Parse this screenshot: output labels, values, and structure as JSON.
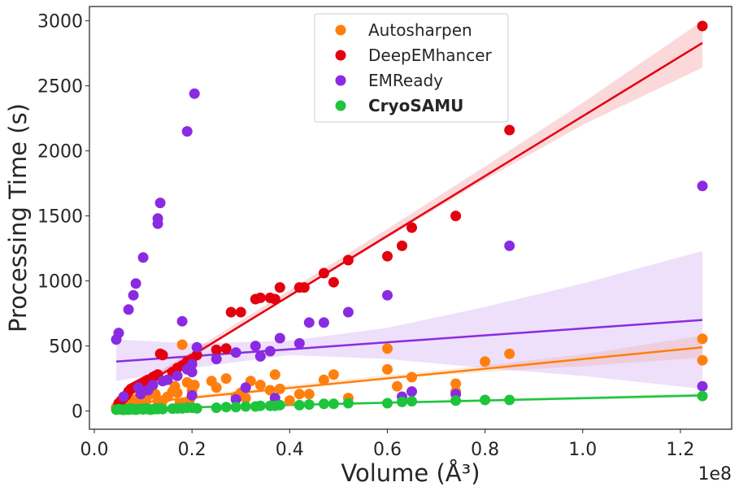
{
  "chart_data": {
    "type": "scatter",
    "title": "",
    "xlabel": "Volume (Å³)",
    "ylabel": "Processing Time (s)",
    "x_offset_label": "1e8",
    "x_scale": 100000000,
    "xlim": [
      -0.01,
      1.305
    ],
    "ylim": [
      -140,
      3110
    ],
    "xticks": [
      0.0,
      0.2,
      0.4,
      0.6,
      0.8,
      1.0,
      1.2
    ],
    "xtick_labels": [
      "0.0",
      "0.2",
      "0.4",
      "0.6",
      "0.8",
      "1.0",
      "1.2"
    ],
    "yticks": [
      0,
      500,
      1000,
      1500,
      2000,
      2500,
      3000
    ],
    "ytick_labels": [
      "0",
      "500",
      "1000",
      "1500",
      "2000",
      "2500",
      "3000"
    ],
    "grid": false,
    "legend_position": "top-center",
    "series": [
      {
        "name": "Autosharpen",
        "color": "#ff7f0e",
        "bold": false,
        "fit": {
          "x": [
            0.045,
            1.245
          ],
          "y": [
            45,
            490
          ]
        },
        "band": {
          "x": [
            0.045,
            0.2,
            0.4,
            0.6,
            0.8,
            1.0,
            1.245
          ],
          "lower": [
            25,
            95,
            175,
            245,
            300,
            345,
            410
          ],
          "upper": [
            70,
            120,
            200,
            275,
            350,
            435,
            580
          ]
        },
        "points": [
          [
            0.045,
            30
          ],
          [
            0.055,
            60
          ],
          [
            0.06,
            20
          ],
          [
            0.07,
            40
          ],
          [
            0.075,
            90
          ],
          [
            0.08,
            50
          ],
          [
            0.085,
            60
          ],
          [
            0.09,
            100
          ],
          [
            0.095,
            140
          ],
          [
            0.1,
            40
          ],
          [
            0.105,
            70
          ],
          [
            0.11,
            120
          ],
          [
            0.115,
            170
          ],
          [
            0.12,
            260
          ],
          [
            0.125,
            130
          ],
          [
            0.13,
            80
          ],
          [
            0.14,
            80
          ],
          [
            0.15,
            110
          ],
          [
            0.16,
            150
          ],
          [
            0.165,
            190
          ],
          [
            0.17,
            140
          ],
          [
            0.175,
            60
          ],
          [
            0.18,
            510
          ],
          [
            0.185,
            360
          ],
          [
            0.19,
            220
          ],
          [
            0.195,
            80
          ],
          [
            0.2,
            160
          ],
          [
            0.205,
            200
          ],
          [
            0.24,
            230
          ],
          [
            0.25,
            180
          ],
          [
            0.27,
            250
          ],
          [
            0.29,
            110
          ],
          [
            0.3,
            140
          ],
          [
            0.31,
            100
          ],
          [
            0.32,
            230
          ],
          [
            0.34,
            200
          ],
          [
            0.36,
            160
          ],
          [
            0.37,
            280
          ],
          [
            0.38,
            170
          ],
          [
            0.4,
            80
          ],
          [
            0.42,
            130
          ],
          [
            0.44,
            130
          ],
          [
            0.47,
            240
          ],
          [
            0.49,
            280
          ],
          [
            0.52,
            100
          ],
          [
            0.6,
            480
          ],
          [
            0.6,
            320
          ],
          [
            0.62,
            190
          ],
          [
            0.65,
            260
          ],
          [
            0.74,
            210
          ],
          [
            0.74,
            150
          ],
          [
            0.8,
            380
          ],
          [
            0.85,
            440
          ],
          [
            1.245,
            555
          ],
          [
            1.245,
            390
          ]
        ]
      },
      {
        "name": "DeepEMhancer",
        "color": "#e3000f",
        "bold": false,
        "fit": {
          "x": [
            0.045,
            1.245
          ],
          "y": [
            70,
            2830
          ]
        },
        "band": {
          "x": [
            0.045,
            0.2,
            0.4,
            0.6,
            0.8,
            1.0,
            1.245
          ],
          "lower": [
            40,
            410,
            880,
            1330,
            1780,
            2200,
            2640
          ],
          "upper": [
            100,
            460,
            930,
            1400,
            1880,
            2370,
            3000
          ]
        },
        "points": [
          [
            0.05,
            60
          ],
          [
            0.055,
            80
          ],
          [
            0.06,
            100
          ],
          [
            0.065,
            120
          ],
          [
            0.07,
            150
          ],
          [
            0.075,
            170
          ],
          [
            0.08,
            180
          ],
          [
            0.085,
            190
          ],
          [
            0.09,
            200
          ],
          [
            0.095,
            210
          ],
          [
            0.1,
            220
          ],
          [
            0.105,
            230
          ],
          [
            0.11,
            240
          ],
          [
            0.12,
            260
          ],
          [
            0.125,
            270
          ],
          [
            0.13,
            280
          ],
          [
            0.135,
            440
          ],
          [
            0.14,
            430
          ],
          [
            0.16,
            300
          ],
          [
            0.17,
            330
          ],
          [
            0.18,
            350
          ],
          [
            0.19,
            380
          ],
          [
            0.2,
            400
          ],
          [
            0.21,
            430
          ],
          [
            0.25,
            470
          ],
          [
            0.27,
            480
          ],
          [
            0.28,
            760
          ],
          [
            0.3,
            760
          ],
          [
            0.33,
            860
          ],
          [
            0.34,
            870
          ],
          [
            0.36,
            870
          ],
          [
            0.37,
            860
          ],
          [
            0.38,
            950
          ],
          [
            0.42,
            950
          ],
          [
            0.43,
            950
          ],
          [
            0.47,
            1060
          ],
          [
            0.49,
            990
          ],
          [
            0.52,
            1160
          ],
          [
            0.6,
            1190
          ],
          [
            0.63,
            1270
          ],
          [
            0.65,
            1410
          ],
          [
            0.74,
            1500
          ],
          [
            0.85,
            2160
          ],
          [
            1.245,
            2960
          ]
        ]
      },
      {
        "name": "EMReady",
        "color": "#8a2be2",
        "bold": false,
        "fit": {
          "x": [
            0.045,
            1.245
          ],
          "y": [
            380,
            700
          ]
        },
        "band": {
          "x": [
            0.045,
            0.2,
            0.4,
            0.6,
            0.8,
            1.0,
            1.245
          ],
          "lower": [
            230,
            330,
            430,
            400,
            330,
            270,
            170
          ],
          "upper": [
            550,
            520,
            540,
            640,
            800,
            980,
            1230
          ]
        },
        "points": [
          [
            0.045,
            550
          ],
          [
            0.05,
            600
          ],
          [
            0.06,
            110
          ],
          [
            0.07,
            780
          ],
          [
            0.08,
            890
          ],
          [
            0.085,
            980
          ],
          [
            0.1,
            1180
          ],
          [
            0.09,
            180
          ],
          [
            0.095,
            130
          ],
          [
            0.11,
            160
          ],
          [
            0.12,
            200
          ],
          [
            0.13,
            1480
          ],
          [
            0.13,
            1440
          ],
          [
            0.135,
            1600
          ],
          [
            0.14,
            230
          ],
          [
            0.15,
            240
          ],
          [
            0.17,
            270
          ],
          [
            0.18,
            690
          ],
          [
            0.19,
            2150
          ],
          [
            0.19,
            320
          ],
          [
            0.2,
            360
          ],
          [
            0.2,
            300
          ],
          [
            0.205,
            2440
          ],
          [
            0.21,
            490
          ],
          [
            0.2,
            120
          ],
          [
            0.25,
            400
          ],
          [
            0.29,
            90
          ],
          [
            0.29,
            450
          ],
          [
            0.31,
            180
          ],
          [
            0.33,
            500
          ],
          [
            0.34,
            420
          ],
          [
            0.36,
            460
          ],
          [
            0.37,
            100
          ],
          [
            0.38,
            560
          ],
          [
            0.42,
            520
          ],
          [
            0.44,
            680
          ],
          [
            0.47,
            680
          ],
          [
            0.52,
            760
          ],
          [
            0.6,
            890
          ],
          [
            0.63,
            110
          ],
          [
            0.65,
            150
          ],
          [
            0.74,
            130
          ],
          [
            0.85,
            1270
          ],
          [
            1.245,
            1730
          ],
          [
            1.245,
            190
          ]
        ]
      },
      {
        "name": "CryoSAMU",
        "color": "#1ec43c",
        "bold": true,
        "fit": {
          "x": [
            0.045,
            1.245
          ],
          "y": [
            15,
            120
          ]
        },
        "band": {
          "x": [
            0.045,
            1.245
          ],
          "lower": [
            10,
            105
          ],
          "upper": [
            22,
            135
          ]
        },
        "points": [
          [
            0.045,
            10
          ],
          [
            0.05,
            15
          ],
          [
            0.055,
            12
          ],
          [
            0.06,
            8
          ],
          [
            0.065,
            15
          ],
          [
            0.07,
            10
          ],
          [
            0.075,
            20
          ],
          [
            0.08,
            12
          ],
          [
            0.085,
            10
          ],
          [
            0.09,
            15
          ],
          [
            0.095,
            18
          ],
          [
            0.1,
            12
          ],
          [
            0.105,
            20
          ],
          [
            0.11,
            15
          ],
          [
            0.115,
            10
          ],
          [
            0.12,
            14
          ],
          [
            0.125,
            18
          ],
          [
            0.13,
            15
          ],
          [
            0.135,
            20
          ],
          [
            0.14,
            15
          ],
          [
            0.16,
            18
          ],
          [
            0.17,
            20
          ],
          [
            0.18,
            20
          ],
          [
            0.19,
            25
          ],
          [
            0.2,
            25
          ],
          [
            0.21,
            20
          ],
          [
            0.25,
            25
          ],
          [
            0.27,
            30
          ],
          [
            0.29,
            30
          ],
          [
            0.31,
            35
          ],
          [
            0.33,
            35
          ],
          [
            0.34,
            40
          ],
          [
            0.36,
            40
          ],
          [
            0.37,
            40
          ],
          [
            0.38,
            45
          ],
          [
            0.42,
            45
          ],
          [
            0.44,
            50
          ],
          [
            0.47,
            55
          ],
          [
            0.49,
            55
          ],
          [
            0.52,
            60
          ],
          [
            0.6,
            60
          ],
          [
            0.63,
            70
          ],
          [
            0.65,
            75
          ],
          [
            0.74,
            80
          ],
          [
            0.8,
            85
          ],
          [
            0.85,
            85
          ],
          [
            1.245,
            115
          ]
        ]
      }
    ]
  }
}
